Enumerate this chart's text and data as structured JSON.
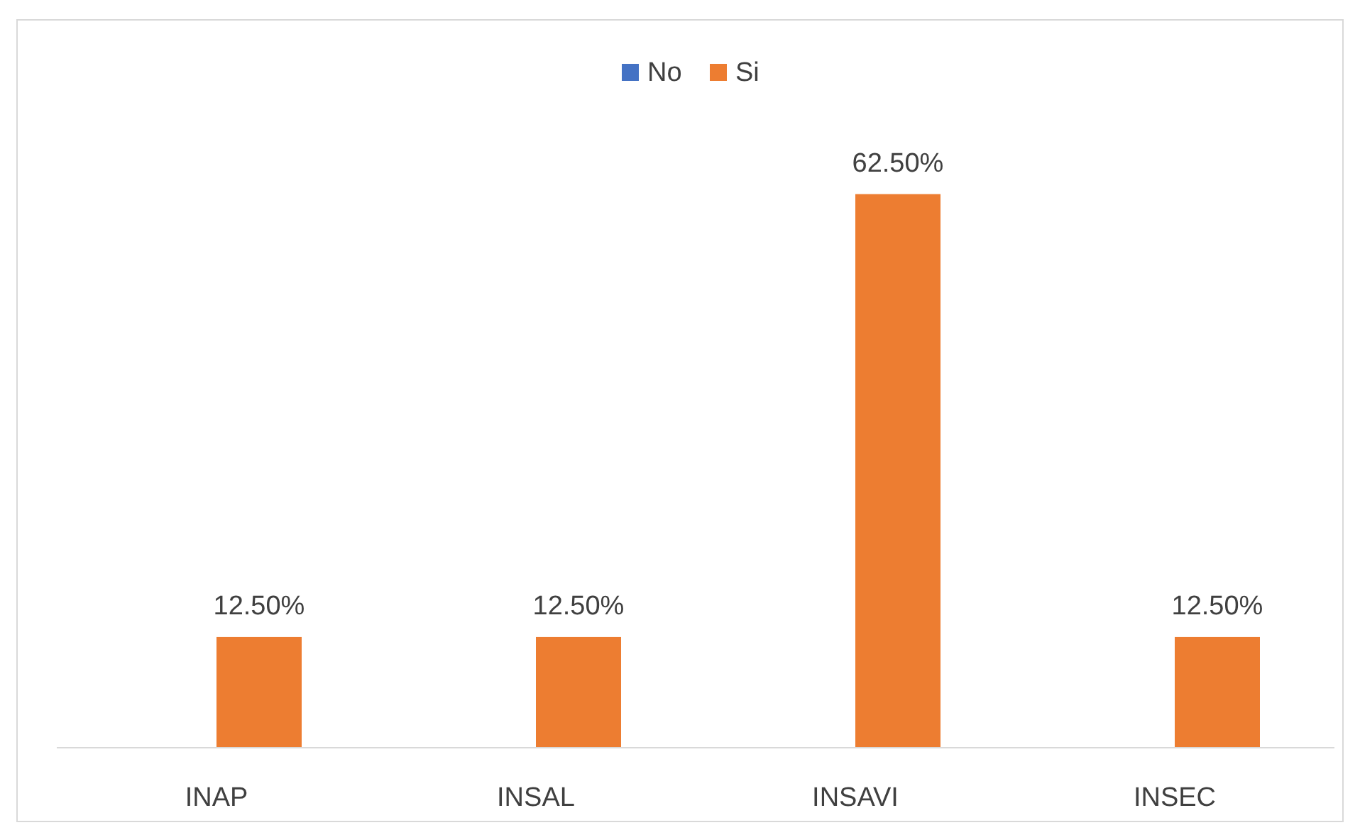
{
  "chart_data": {
    "type": "bar",
    "categories": [
      "INAP",
      "INSAL",
      "INSAVI",
      "INSEC"
    ],
    "series": [
      {
        "name": "No",
        "color": "#4472c4",
        "values": [
          null,
          null,
          null,
          null
        ]
      },
      {
        "name": "Si",
        "color": "#ed7d31",
        "values": [
          12.5,
          12.5,
          62.5,
          12.5
        ],
        "value_labels": [
          "12.50%",
          "12.50%",
          "62.50%",
          "12.50%"
        ]
      }
    ],
    "legend": "top"
  }
}
